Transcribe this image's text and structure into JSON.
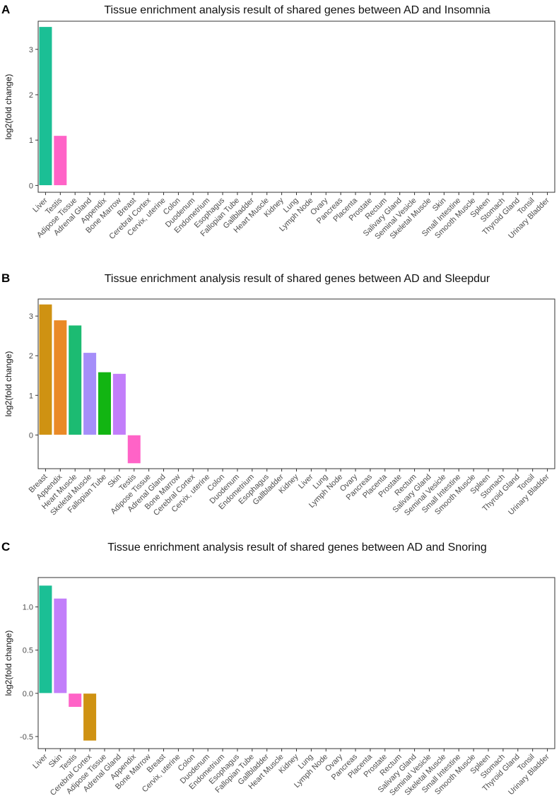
{
  "chart_data": [
    {
      "panel": "A",
      "type": "bar",
      "title": "Tissue enrichment analysis result of shared genes between AD and Insomnia",
      "ylabel": "log2(fold change)",
      "xlabel": "",
      "ylim": [
        -0.15,
        3.62
      ],
      "yticks": [
        0,
        1,
        2,
        3
      ],
      "ytick_labels": [
        "0",
        "1",
        "2",
        "3"
      ],
      "categories": [
        "Liver",
        "Testis",
        "Adipose Tissue",
        "Adrenal Gland",
        "Appendix",
        "Bone Marrow",
        "Breast",
        "Cerebral Cortex",
        "Cervix, uterine",
        "Colon",
        "Duodenum",
        "Endometrium",
        "Esophagus",
        "Fallopian Tube",
        "Gallbladder",
        "Heart Muscle",
        "Kidney",
        "Lung",
        "Lymph Node",
        "Ovary",
        "Pancreas",
        "Placenta",
        "Prostate",
        "Rectum",
        "Salivary Gland",
        "Seminal Vesicle",
        "Skeletal Muscle",
        "Skin",
        "Small Intestine",
        "Smooth Muscle",
        "Spleen",
        "Stomach",
        "Thyroid Gland",
        "Tonsil",
        "Urinary Bladder"
      ],
      "values": [
        3.5,
        1.1,
        null,
        null,
        null,
        null,
        null,
        null,
        null,
        null,
        null,
        null,
        null,
        null,
        null,
        null,
        null,
        null,
        null,
        null,
        null,
        null,
        null,
        null,
        null,
        null,
        null,
        null,
        null,
        null,
        null,
        null,
        null,
        null,
        null
      ],
      "colors": [
        "#1bbf95",
        "#ff63c7"
      ]
    },
    {
      "panel": "B",
      "type": "bar",
      "title": "Tissue enrichment analysis result of shared genes between AD and Sleepdur",
      "ylabel": "log2(fold change)",
      "xlabel": "",
      "ylim": [
        -0.85,
        3.43
      ],
      "yticks": [
        0,
        1,
        2,
        3
      ],
      "ytick_labels": [
        "0",
        "1",
        "2",
        "3"
      ],
      "categories": [
        "Breast",
        "Appendix",
        "Heart Muscle",
        "Skeletal Muscle",
        "Fallopian Tube",
        "Skin",
        "Testis",
        "Adipose Tissue",
        "Adrenal Gland",
        "Bone Marrow",
        "Cerebral Cortex",
        "Cervix, uterine",
        "Colon",
        "Duodenum",
        "Endometrium",
        "Esophagus",
        "Gallbladder",
        "Kidney",
        "Liver",
        "Lung",
        "Lymph Node",
        "Ovary",
        "Pancreas",
        "Placenta",
        "Prostate",
        "Rectum",
        "Salivary Gland",
        "Seminal Vesicle",
        "Small Intestine",
        "Smooth Muscle",
        "Spleen",
        "Stomach",
        "Thyroid Gland",
        "Tonsil",
        "Urinary Bladder"
      ],
      "values": [
        3.3,
        2.9,
        2.77,
        2.08,
        1.59,
        1.55,
        -0.72,
        null,
        null,
        null,
        null,
        null,
        null,
        null,
        null,
        null,
        null,
        null,
        null,
        null,
        null,
        null,
        null,
        null,
        null,
        null,
        null,
        null,
        null,
        null,
        null,
        null,
        null,
        null,
        null
      ],
      "colors": [
        "#cf9212",
        "#ea8a27",
        "#1cbb72",
        "#a58ef9",
        "#12b512",
        "#c27efa",
        "#ff63c7"
      ]
    },
    {
      "panel": "C",
      "type": "bar",
      "title": "Tissue enrichment analysis result of shared genes between AD and Snoring",
      "ylabel": "log2(fold change)",
      "xlabel": "",
      "ylim": [
        -0.64,
        1.34
      ],
      "yticks": [
        -0.5,
        0.0,
        0.5,
        1.0
      ],
      "ytick_labels": [
        "-0.5",
        "0.0",
        "0.5",
        "1.0"
      ],
      "categories": [
        "Liver",
        "Skin",
        "Testis",
        "Cerebral Cortex",
        "Adipose Tissue",
        "Adrenal Gland",
        "Appendix",
        "Bone Marrow",
        "Breast",
        "Cervix, uterine",
        "Colon",
        "Duodenum",
        "Endometrium",
        "Esophagus",
        "Fallopian Tube",
        "Gallbladder",
        "Heart Muscle",
        "Kidney",
        "Lung",
        "Lymph Node",
        "Ovary",
        "Pancreas",
        "Placenta",
        "Prostate",
        "Rectum",
        "Salivary Gland",
        "Seminal Vesicle",
        "Skeletal Muscle",
        "Small Intestine",
        "Smooth Muscle",
        "Spleen",
        "Stomach",
        "Thyroid Gland",
        "Tonsil",
        "Urinary Bladder"
      ],
      "values": [
        1.25,
        1.1,
        -0.16,
        -0.55,
        null,
        null,
        null,
        null,
        null,
        null,
        null,
        null,
        null,
        null,
        null,
        null,
        null,
        null,
        null,
        null,
        null,
        null,
        null,
        null,
        null,
        null,
        null,
        null,
        null,
        null,
        null,
        null,
        null,
        null,
        null
      ],
      "colors": [
        "#1bbf95",
        "#c27efa",
        "#ff63c7",
        "#cf9212"
      ]
    }
  ]
}
